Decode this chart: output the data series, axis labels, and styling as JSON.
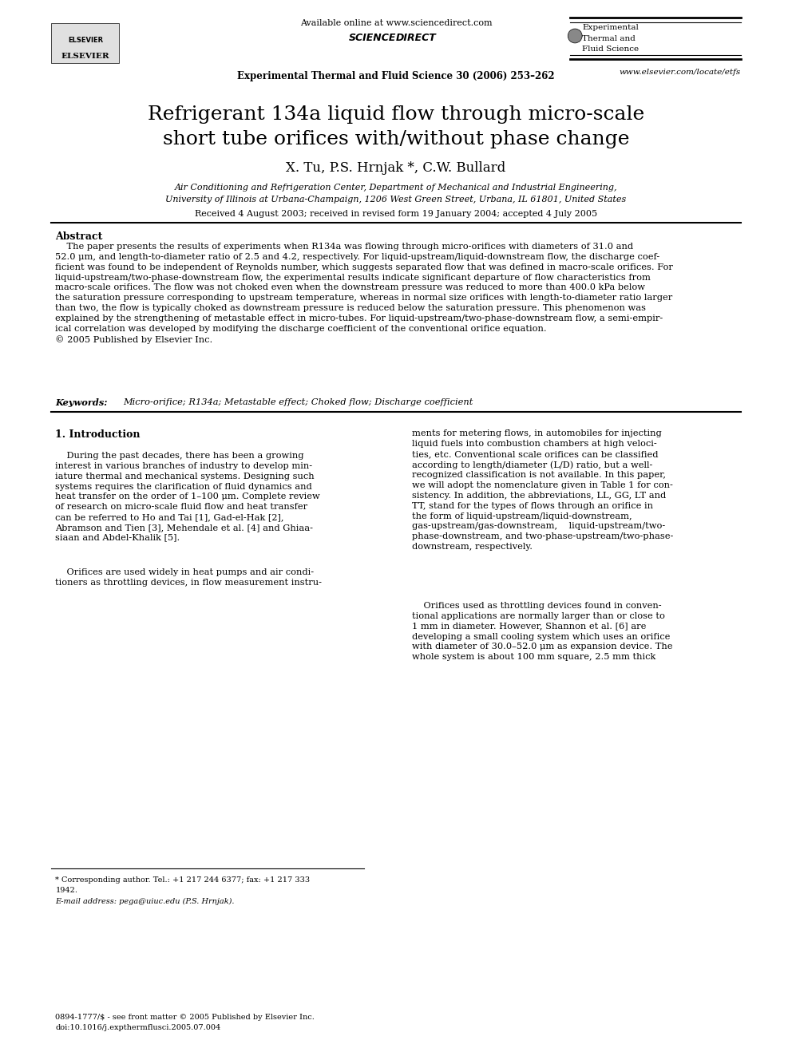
{
  "title_line1": "Refrigerant 134a liquid flow through micro-scale",
  "title_line2": "short tube orifices with/without phase change",
  "authors": "X. Tu, P.S. Hrnjak *, C.W. Bullard",
  "affiliation1": "Air Conditioning and Refrigeration Center, Department of Mechanical and Industrial Engineering,",
  "affiliation2": "University of Illinois at Urbana-Champaign, 1206 West Green Street, Urbana, IL 61801, United States",
  "received": "Received 4 August 2003; received in revised form 19 January 2004; accepted 4 July 2005",
  "header_center": "Available online at www.sciencedirect.com",
  "journal_line": "Experimental Thermal and Fluid Science 30 (2006) 253–262",
  "website": "www.elsevier.com/locate/etfs",
  "abstract_title": "Abstract",
  "abstract_body": "    The paper presents the results of experiments when R134a was flowing through micro-orifices with diameters of 31.0 and\n52.0 μm, and length-to-diameter ratio of 2.5 and 4.2, respectively. For liquid-upstream/liquid-downstream flow, the discharge coef-\nficient was found to be independent of Reynolds number, which suggests separated flow that was defined in macro-scale orifices. For\nliquid-upstream/two-phase-downstream flow, the experimental results indicate significant departure of flow characteristics from\nmacro-scale orifices. The flow was not choked even when the downstream pressure was reduced to more than 400.0 kPa below\nthe saturation pressure corresponding to upstream temperature, whereas in normal size orifices with length-to-diameter ratio larger\nthan two, the flow is typically choked as downstream pressure is reduced below the saturation pressure. This phenomenon was\nexplained by the strengthening of metastable effect in micro-tubes. For liquid-upstream/two-phase-downstream flow, a semi-empir-\nical correlation was developed by modifying the discharge coefficient of the conventional orifice equation.\n© 2005 Published by Elsevier Inc.",
  "keywords_label": "Keywords:  ",
  "keywords_text": "Micro-orifice; R134a; Metastable effect; Choked flow; Discharge coefficient",
  "section1_title": "1. Introduction",
  "intro_col1_p1": "    During the past decades, there has been a growing\ninterest in various branches of industry to develop min-\niature thermal and mechanical systems. Designing such\nsystems requires the clarification of fluid dynamics and\nheat transfer on the order of 1–100 μm. Complete review\nof research on micro-scale fluid flow and heat transfer\ncan be referred to Ho and Tai [1], Gad-el-Hak [2],\nAbramson and Tien [3], Mehendale et al. [4] and Ghiaa-\nsiaan and Abdel-Khalik [5].",
  "intro_col1_p2": "    Orifices are used widely in heat pumps and air condi-\ntioners as throttling devices, in flow measurement instru-",
  "intro_col2_p1": "ments for metering flows, in automobiles for injecting\nliquid fuels into combustion chambers at high veloci-\nties, etc. Conventional scale orifices can be classified\naccording to length/diameter (L/D) ratio, but a well-\nrecognized classification is not available. In this paper,\nwe will adopt the nomenclature given in Table 1 for con-\nsistency. In addition, the abbreviations, LL, GG, LT and\nTT, stand for the types of flows through an orifice in\nthe form of liquid-upstream/liquid-downstream,\ngas-upstream/gas-downstream,    liquid-upstream/two-\nphase-downstream, and two-phase-upstream/two-phase-\ndownstream, respectively.",
  "intro_col2_p2": "    Orifices used as throttling devices found in conven-\ntional applications are normally larger than or close to\n1 mm in diameter. However, Shannon et al. [6] are\ndeveloping a small cooling system which uses an orifice\nwith diameter of 30.0–52.0 μm as expansion device. The\nwhole system is about 100 mm square, 2.5 mm thick",
  "footnote1": "* Corresponding author. Tel.: +1 217 244 6377; fax: +1 217 333",
  "footnote2": "1942.",
  "footnote3": "E-mail address: pega@uiuc.edu (P.S. Hrnjak).",
  "footer1": "0894-1777/$ - see front matter © 2005 Published by Elsevier Inc.",
  "footer2": "doi:10.1016/j.expthermflusci.2005.07.004",
  "bg_color": "#ffffff",
  "page_width": 9.92,
  "page_height": 13.23
}
